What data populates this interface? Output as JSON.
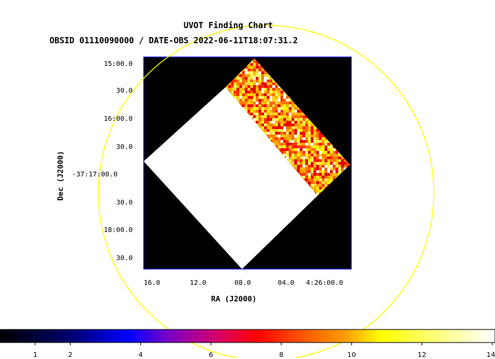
{
  "header": {
    "title": "UVOT Finding Chart",
    "subtitle": "OBSID 01110090000 / DATE-OBS 2022-06-11T18:07:31.2"
  },
  "chart_data": {
    "type": "heatmap",
    "title": "UVOT Finding Chart",
    "subtitle": "OBSID 01110090000 / DATE-OBS 2022-06-11T18:07:31.2",
    "xlabel": "RA (J2000)",
    "ylabel": "Dec (J2000)",
    "x_ticks": [
      "16.0",
      "12.0",
      "08.0",
      "04.0",
      "4:26:00.0"
    ],
    "y_ticks": [
      "15:00.0",
      "30.0",
      "16:00.0",
      "30.0",
      "-37:17:00.0",
      "30.0",
      "18:00.0",
      "30.0"
    ],
    "colorbar": {
      "ticks": [
        "1",
        "2",
        "4",
        "6",
        "8",
        "10",
        "12",
        "14"
      ],
      "range": [
        0,
        14
      ],
      "colormap": "heat"
    },
    "circle_color": "#ffff00",
    "frame_color": "#0000ff"
  }
}
